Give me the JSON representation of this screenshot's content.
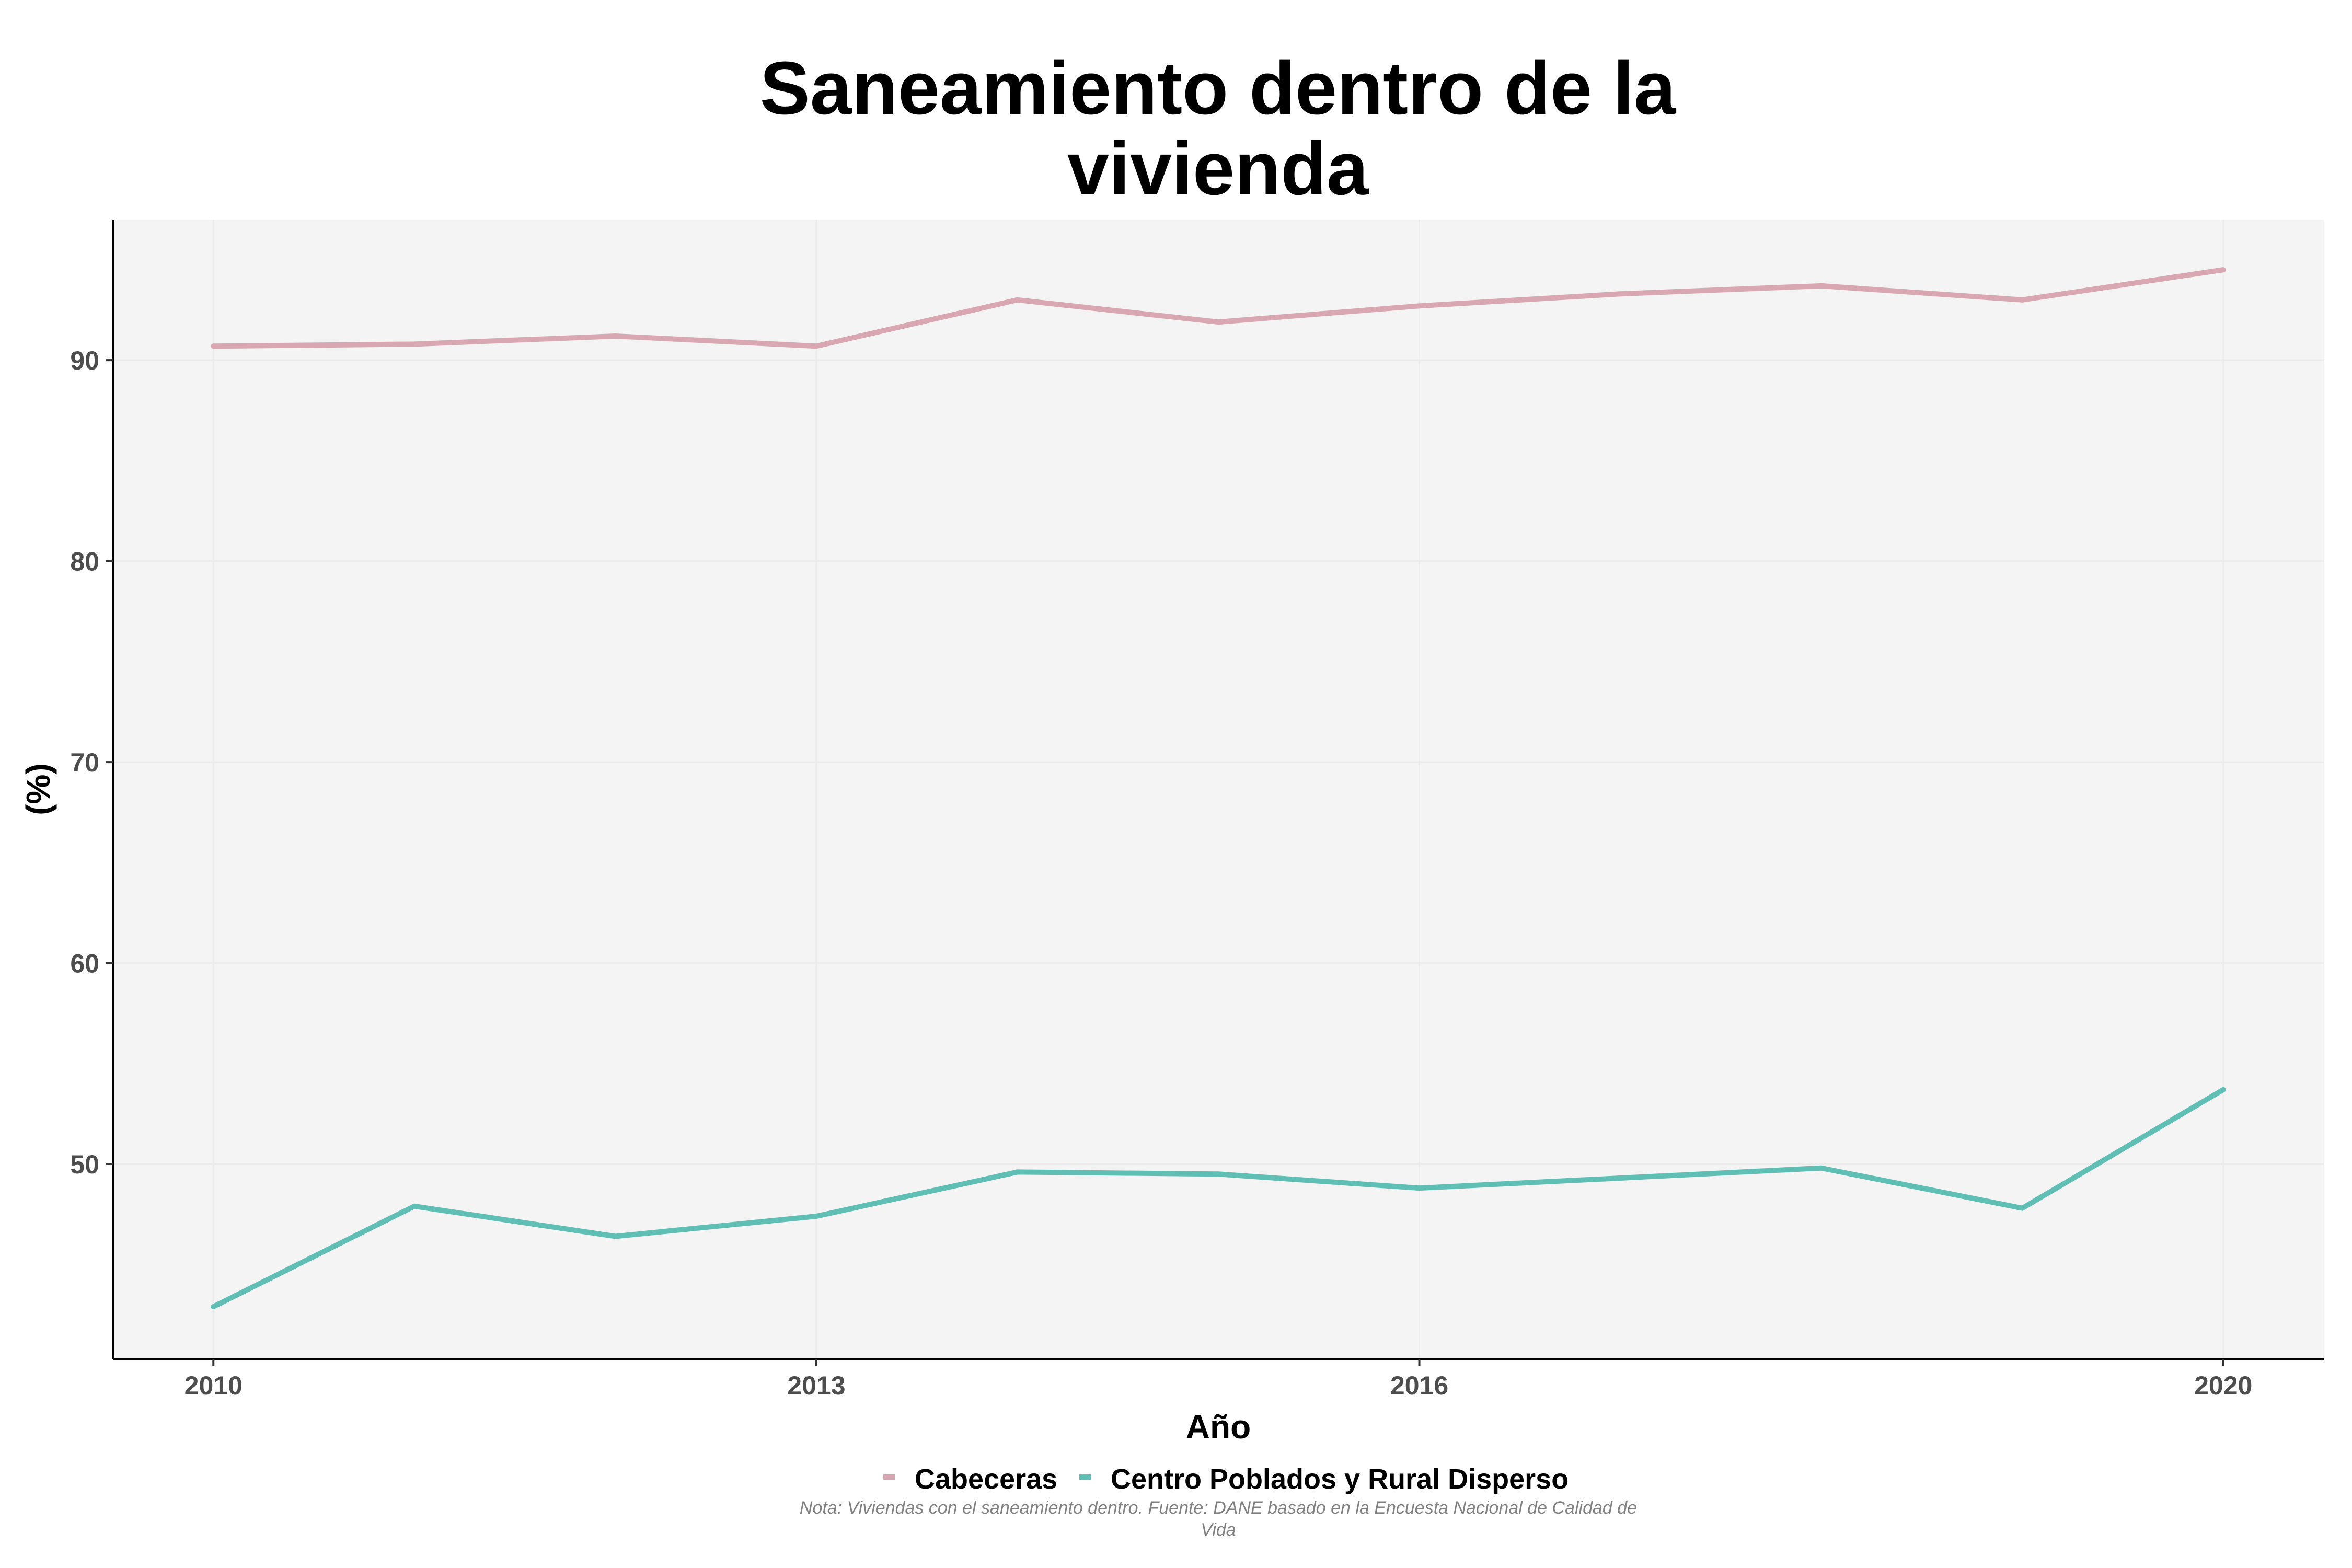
{
  "chart_data": {
    "type": "line",
    "title": "Saneamiento dentro de la vivienda",
    "title_lines": [
      "Saneamiento dentro de la",
      "vivienda"
    ],
    "xlabel": "Año",
    "ylabel": "(%)",
    "x": [
      2010,
      2011,
      2012,
      2013,
      2014,
      2015,
      2016,
      2017,
      2018,
      2019,
      2020
    ],
    "x_ticks": [
      2010,
      2013,
      2016,
      2020
    ],
    "y_ticks": [
      50,
      60,
      70,
      80,
      90
    ],
    "xlim": [
      2009.5,
      2020.5
    ],
    "ylim": [
      40.3,
      97.0
    ],
    "grid": true,
    "legend_position": "bottom",
    "series": [
      {
        "name": "Cabeceras",
        "color": "#D8A7B1",
        "values": [
          90.7,
          90.8,
          91.2,
          90.7,
          93.0,
          91.9,
          92.7,
          93.3,
          93.7,
          93.0,
          94.5
        ]
      },
      {
        "name": "Centro Poblados y Rural Disperso",
        "color": "#5FBFB5",
        "values": [
          42.9,
          47.9,
          46.4,
          47.4,
          49.6,
          49.5,
          48.8,
          49.3,
          49.8,
          47.8,
          53.7
        ]
      }
    ],
    "caption_lines": [
      "Nota: Viviendas con el saneamiento dentro. Fuente: DANE basado en la Encuesta Nacional de Calidad de",
      "Vida"
    ]
  },
  "colors": {
    "panel_background": "#F4F4F4",
    "grid": "#EBEBEB",
    "axis": "#000000"
  }
}
